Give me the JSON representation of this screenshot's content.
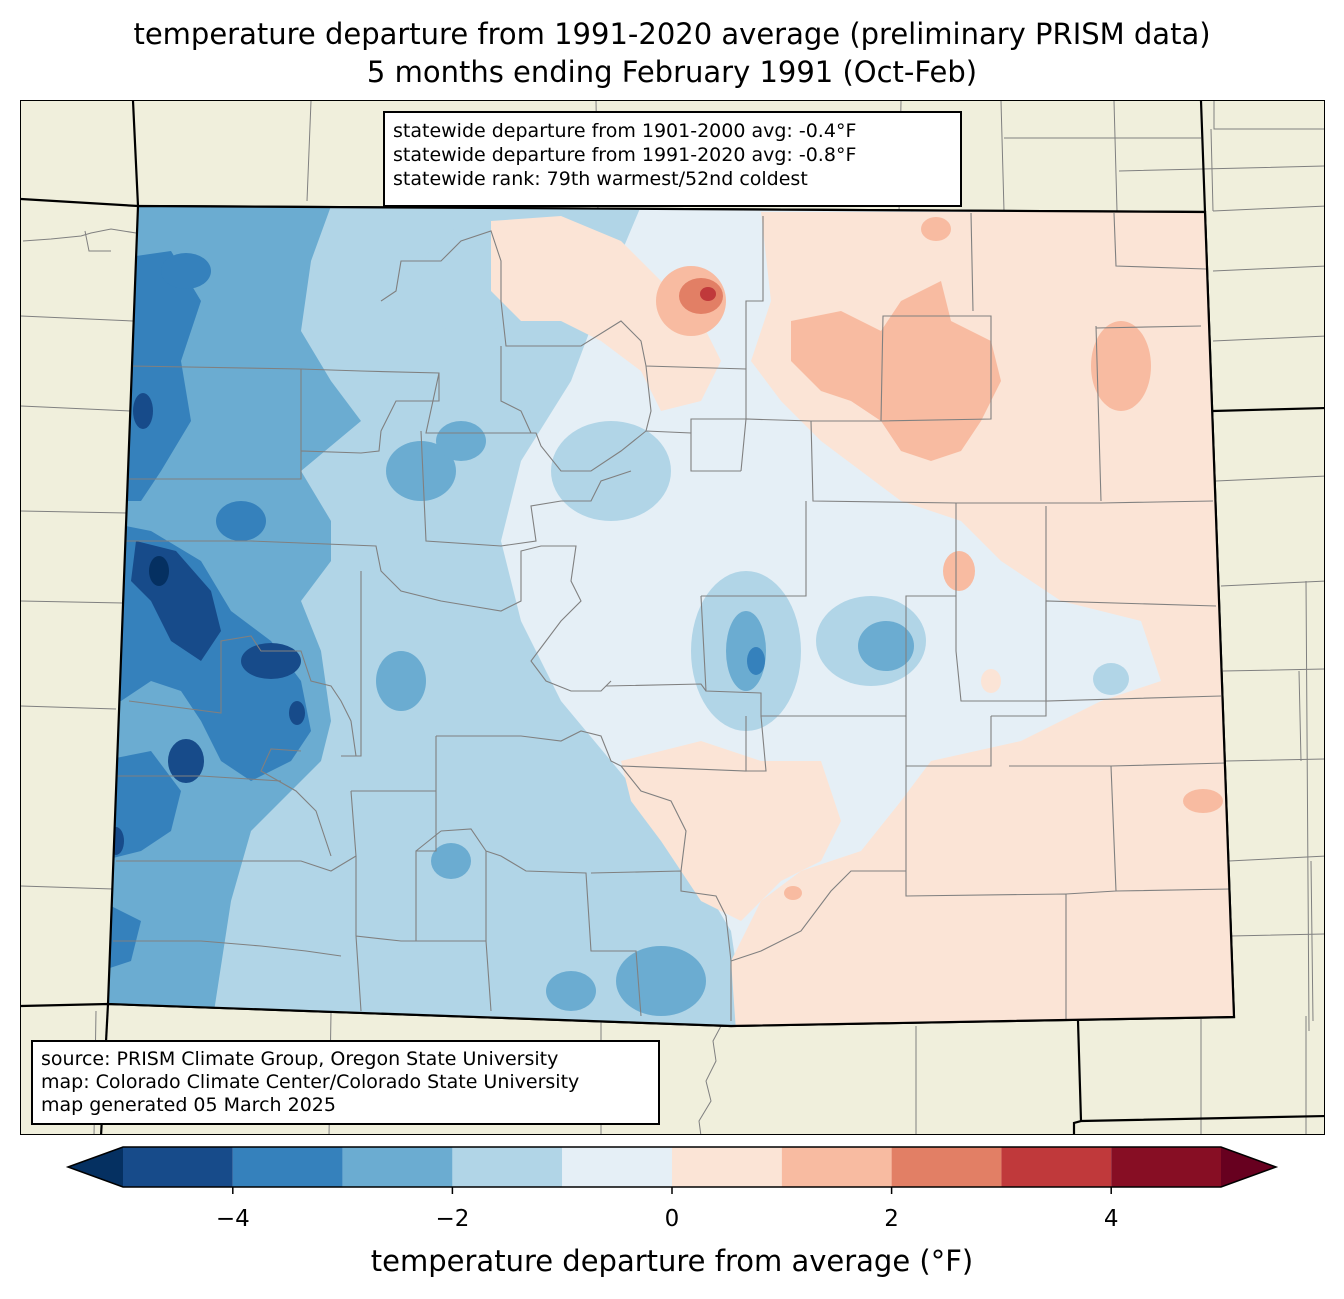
{
  "title": {
    "line1": "temperature departure from 1991-2020 average (preliminary PRISM data)",
    "line2": "5 months ending February 1991 (Oct-Feb)"
  },
  "stats": {
    "line1": "statewide departure from 1901-2000 avg: -0.4°F",
    "line2": "statewide departure from 1991-2020 avg: -0.8°F",
    "line3": "statewide rank: 79th warmest/52nd coldest"
  },
  "source": {
    "line1": "source: PRISM Climate Group, Oregon State University",
    "line2": "map: Colorado Climate Center/Colorado State University",
    "line3": "map generated 05 March 2025"
  },
  "colorbar": {
    "label": "temperature departure from average (°F)",
    "ticks": [
      -4,
      -2,
      0,
      2,
      4
    ],
    "tick_labels": [
      "−4",
      "−2",
      "0",
      "2",
      "4"
    ],
    "bounds": [
      -5,
      -4,
      -3,
      -2,
      -1,
      0,
      1,
      2,
      3,
      4,
      5
    ],
    "colors": [
      "#174b8a",
      "#3581bc",
      "#6bacd1",
      "#b1d5e7",
      "#e5eff6",
      "#fbe4d6",
      "#f8bba1",
      "#e27f65",
      "#c0393b",
      "#870e24"
    ],
    "under_color": "#053061",
    "over_color": "#67001f"
  },
  "map_colors": {
    "land": "#f0efdc",
    "county_lines": "#808080",
    "state_lines": "#000000"
  }
}
